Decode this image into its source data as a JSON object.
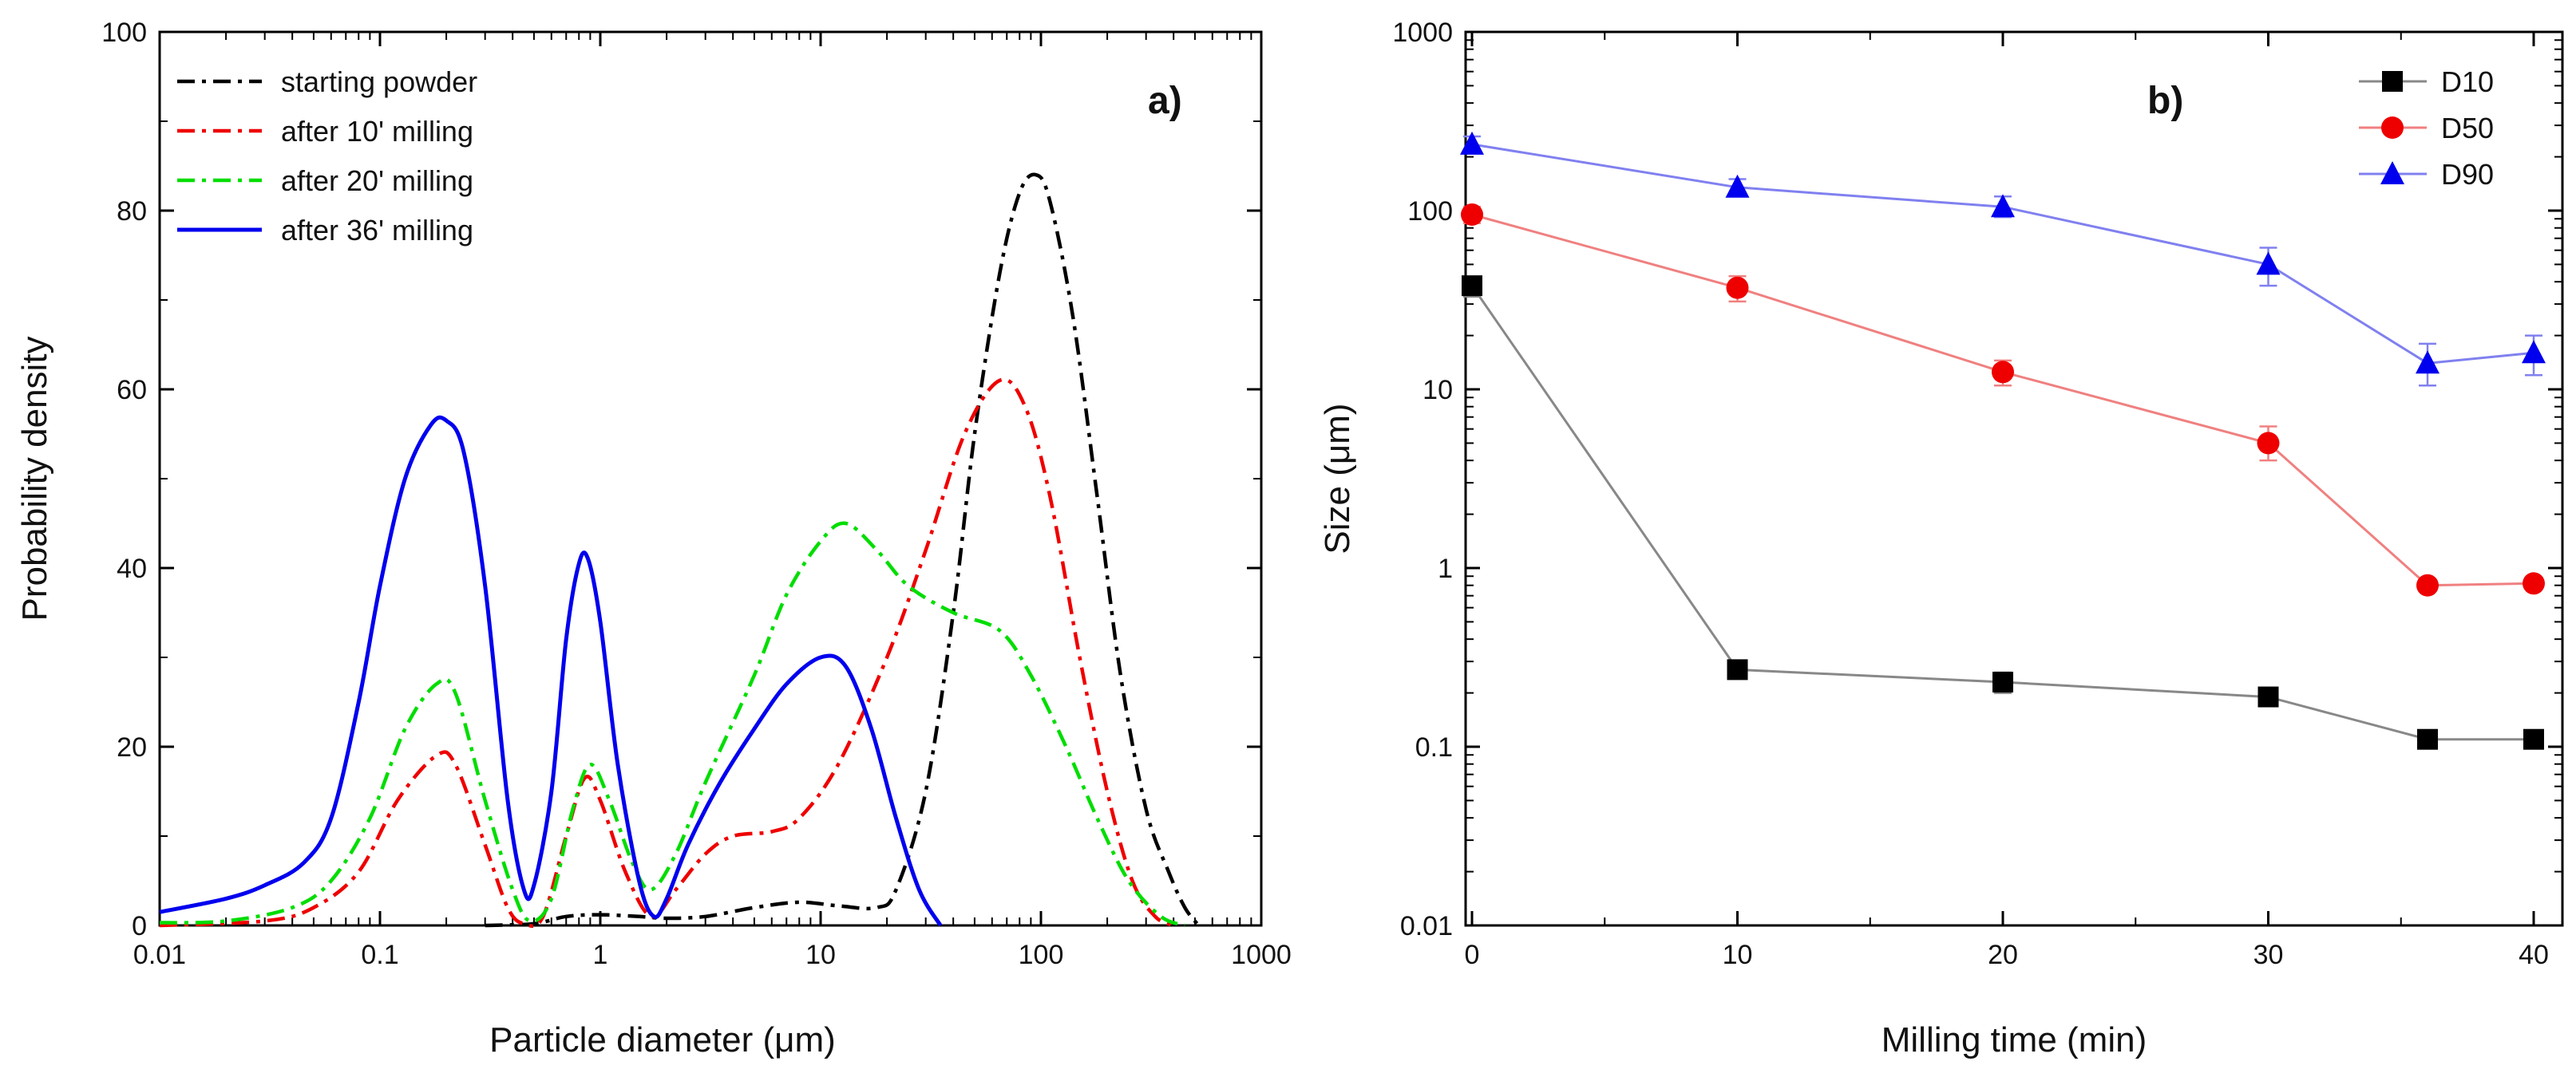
{
  "chart_data": [
    {
      "panel": "a)",
      "type": "line",
      "xlabel": "Particle diameter (μm)",
      "ylabel": "Probability density",
      "xscale": "log",
      "xlim": [
        0.01,
        1000
      ],
      "ylim": [
        0,
        100
      ],
      "xticks": [
        0.01,
        0.1,
        1,
        10,
        100,
        1000
      ],
      "xtick_labels": [
        "0.01",
        "0.1",
        "1",
        "10",
        "100",
        "1000"
      ],
      "yticks": [
        0,
        20,
        40,
        60,
        80,
        100
      ],
      "ytick_labels": [
        "0",
        "20",
        "40",
        "60",
        "80",
        "100"
      ],
      "legend_position": "top-left",
      "series": [
        {
          "name": "starting powder",
          "color": "#000000",
          "style": "dash-dot",
          "points": [
            [
              0.3,
              0
            ],
            [
              0.5,
              0.2
            ],
            [
              0.7,
              1
            ],
            [
              1,
              1.2
            ],
            [
              1.5,
              1
            ],
            [
              2,
              0.8
            ],
            [
              3,
              1
            ],
            [
              5,
              2
            ],
            [
              8,
              2.6
            ],
            [
              12,
              2.2
            ],
            [
              18,
              2
            ],
            [
              22,
              4
            ],
            [
              30,
              15
            ],
            [
              40,
              35
            ],
            [
              50,
              55
            ],
            [
              65,
              73
            ],
            [
              80,
              82
            ],
            [
              95,
              84
            ],
            [
              110,
              81
            ],
            [
              140,
              68
            ],
            [
              180,
              48
            ],
            [
              230,
              28
            ],
            [
              300,
              13
            ],
            [
              380,
              6
            ],
            [
              450,
              2
            ],
            [
              520,
              0
            ]
          ]
        },
        {
          "name": "after 10' milling",
          "color": "#ee0000",
          "style": "dash-dot",
          "points": [
            [
              0.01,
              0
            ],
            [
              0.03,
              0.5
            ],
            [
              0.05,
              2
            ],
            [
              0.08,
              6
            ],
            [
              0.12,
              14
            ],
            [
              0.18,
              19
            ],
            [
              0.22,
              18
            ],
            [
              0.3,
              9
            ],
            [
              0.38,
              2
            ],
            [
              0.45,
              0.2
            ],
            [
              0.55,
              1
            ],
            [
              0.7,
              10
            ],
            [
              0.85,
              16.5
            ],
            [
              1,
              14
            ],
            [
              1.3,
              6
            ],
            [
              1.7,
              1
            ],
            [
              2.2,
              4
            ],
            [
              3,
              8
            ],
            [
              4,
              10
            ],
            [
              6,
              10.5
            ],
            [
              8,
              12
            ],
            [
              12,
              18
            ],
            [
              20,
              30
            ],
            [
              30,
              42
            ],
            [
              45,
              55
            ],
            [
              65,
              61
            ],
            [
              85,
              58
            ],
            [
              110,
              48
            ],
            [
              150,
              30
            ],
            [
              200,
              15
            ],
            [
              260,
              5
            ],
            [
              330,
              1
            ],
            [
              400,
              0
            ]
          ]
        },
        {
          "name": "after 20' milling",
          "color": "#00dd00",
          "style": "dash-dot",
          "points": [
            [
              0.01,
              0.3
            ],
            [
              0.02,
              0.5
            ],
            [
              0.04,
              2
            ],
            [
              0.06,
              5
            ],
            [
              0.09,
              12
            ],
            [
              0.13,
              22
            ],
            [
              0.18,
              27
            ],
            [
              0.22,
              26
            ],
            [
              0.3,
              14
            ],
            [
              0.4,
              4
            ],
            [
              0.48,
              0.5
            ],
            [
              0.6,
              3
            ],
            [
              0.75,
              13
            ],
            [
              0.9,
              18
            ],
            [
              1.1,
              14
            ],
            [
              1.4,
              7
            ],
            [
              1.7,
              4
            ],
            [
              2.2,
              8
            ],
            [
              3,
              16
            ],
            [
              5,
              28
            ],
            [
              7,
              37
            ],
            [
              10,
              43
            ],
            [
              13,
              45
            ],
            [
              18,
              42
            ],
            [
              25,
              38
            ],
            [
              40,
              35
            ],
            [
              65,
              33
            ],
            [
              90,
              28
            ],
            [
              130,
              20
            ],
            [
              180,
              12
            ],
            [
              250,
              5
            ],
            [
              350,
              1
            ],
            [
              450,
              0
            ]
          ]
        },
        {
          "name": "after 36' milling",
          "color": "#0000ee",
          "style": "solid",
          "points": [
            [
              0.01,
              1.5
            ],
            [
              0.02,
              3
            ],
            [
              0.03,
              4.5
            ],
            [
              0.045,
              7
            ],
            [
              0.06,
              12
            ],
            [
              0.08,
              25
            ],
            [
              0.1,
              38
            ],
            [
              0.13,
              50
            ],
            [
              0.17,
              56
            ],
            [
              0.2,
              56.5
            ],
            [
              0.24,
              53
            ],
            [
              0.3,
              38
            ],
            [
              0.38,
              14
            ],
            [
              0.45,
              4
            ],
            [
              0.5,
              4.5
            ],
            [
              0.6,
              15
            ],
            [
              0.7,
              32
            ],
            [
              0.8,
              40.5
            ],
            [
              0.88,
              41
            ],
            [
              1,
              34
            ],
            [
              1.2,
              18
            ],
            [
              1.5,
              5
            ],
            [
              1.75,
              1
            ],
            [
              2,
              3
            ],
            [
              2.5,
              9
            ],
            [
              3.5,
              16
            ],
            [
              5,
              22
            ],
            [
              7,
              27
            ],
            [
              10,
              30
            ],
            [
              13,
              29
            ],
            [
              17,
              22
            ],
            [
              22,
              12
            ],
            [
              28,
              4
            ],
            [
              35,
              0
            ]
          ]
        }
      ]
    },
    {
      "panel": "b)",
      "type": "line",
      "xlabel": "Milling time (min)",
      "ylabel": "Size (μm)",
      "yscale": "log",
      "xlim": [
        0,
        40
      ],
      "ylim": [
        0.01,
        1000
      ],
      "xticks": [
        0,
        10,
        20,
        30,
        40
      ],
      "xtick_labels": [
        "0",
        "10",
        "20",
        "30",
        "40"
      ],
      "yticks": [
        0.01,
        0.1,
        1,
        10,
        100,
        1000
      ],
      "ytick_labels": [
        "0.01",
        "0.1",
        "1",
        "10",
        "100",
        "1000"
      ],
      "legend_position": "top-right",
      "x": [
        0,
        10,
        20,
        30,
        36,
        40
      ],
      "series": [
        {
          "name": "D10",
          "color": "#000000",
          "line_color": "#888888",
          "marker": "square",
          "values": [
            38,
            0.27,
            0.23,
            0.19,
            0.11,
            0.11
          ],
          "error_low": [
            33,
            0.24,
            0.2,
            0.17,
            0.1,
            0.1
          ],
          "error_high": [
            42,
            0.3,
            0.26,
            0.21,
            0.12,
            0.12
          ]
        },
        {
          "name": "D50",
          "color": "#ee0000",
          "line_color": "#f08080",
          "marker": "circle",
          "values": [
            95,
            37,
            12.5,
            5,
            0.8,
            0.82
          ],
          "error_low": [
            85,
            31,
            10.5,
            4,
            0.75,
            0.77
          ],
          "error_high": [
            105,
            43,
            14.5,
            6.2,
            0.85,
            0.87
          ]
        },
        {
          "name": "D90",
          "color": "#0000ee",
          "line_color": "#8080f0",
          "marker": "triangle",
          "values": [
            235,
            135,
            105,
            50,
            14,
            16
          ],
          "error_low": [
            210,
            120,
            92,
            38,
            10.5,
            12
          ],
          "error_high": [
            260,
            150,
            120,
            62,
            18,
            20
          ]
        }
      ]
    }
  ]
}
